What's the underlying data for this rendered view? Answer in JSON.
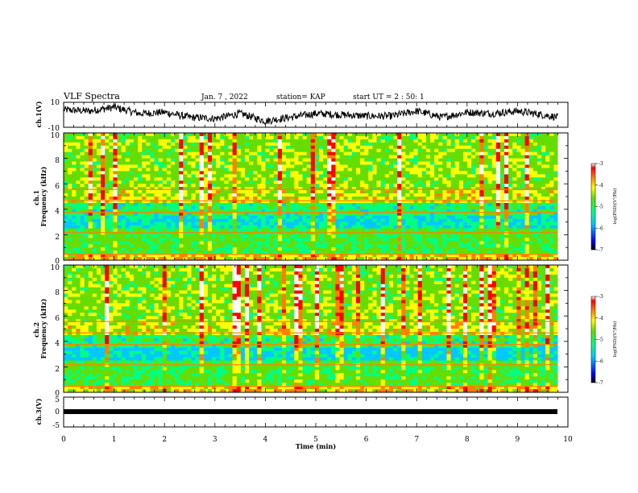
{
  "header": {
    "title": "VLF Spectra",
    "date": "Jan. 7 , 2022",
    "station": "station= KAP",
    "start": "start UT = 2 : 50: 1"
  },
  "colors": {
    "spectrum_scale": [
      "#000000",
      "#0000ff",
      "#00c8ff",
      "#00ff80",
      "#66dd00",
      "#ffff00",
      "#ff8000",
      "#ff0000",
      "#ffffff"
    ],
    "frame": "#000000"
  },
  "chart_data": [
    {
      "id": "ch1-waveform",
      "type": "line",
      "ylabel": "ch.1(V)",
      "ylim": [
        -10,
        10
      ],
      "yticks": [
        "10",
        "-10"
      ],
      "xlim": [
        0,
        10
      ],
      "x": [
        0,
        0.5,
        1,
        1.5,
        2,
        2.5,
        3,
        3.5,
        4,
        4.5,
        5,
        5.5,
        6,
        6.5,
        7,
        7.5,
        8,
        8.5,
        9,
        9.5,
        9.8
      ],
      "y": [
        4,
        3,
        6,
        1,
        2,
        -2,
        -3,
        1,
        -5,
        -2,
        1,
        0,
        -1,
        -1,
        3,
        -2,
        2,
        1,
        3,
        0,
        -2
      ]
    },
    {
      "id": "ch1-spectrogram",
      "type": "heatmap",
      "ylabel": "ch.1\nFrequency (kHz)",
      "ylim": [
        0,
        10
      ],
      "yticks": [
        "0",
        "2",
        "4",
        "6",
        "8",
        "10"
      ],
      "xlim": [
        0,
        10
      ],
      "data_xmax": 9.8,
      "colorbar": {
        "label": "log(PSD)(V²/Hz)",
        "range": [
          -7,
          -3
        ],
        "ticks": [
          "-3",
          "-4",
          "-5",
          "-6",
          "-7"
        ]
      }
    },
    {
      "id": "ch2-spectrogram",
      "type": "heatmap",
      "ylabel": "ch.2\nFrequency (kHz)",
      "ylim": [
        0,
        10
      ],
      "yticks": [
        "0",
        "2",
        "4",
        "6",
        "8",
        "10"
      ],
      "xlim": [
        0,
        10
      ],
      "data_xmax": 9.8,
      "colorbar": {
        "label": "log(PSD)(V²/Hz)",
        "range": [
          -7,
          -3
        ],
        "ticks": [
          "-3",
          "-4",
          "-5",
          "-6",
          "-7"
        ]
      }
    },
    {
      "id": "ch3-waveform",
      "type": "line",
      "ylabel": "ch.3(V)",
      "ylim": [
        -5,
        5
      ],
      "yticks": [
        "5",
        "0",
        "-5"
      ],
      "xlim": [
        0,
        10
      ],
      "xlabel": "Time (min)",
      "xticks": [
        "0",
        "1",
        "2",
        "3",
        "4",
        "5",
        "6",
        "7",
        "8",
        "9",
        "10"
      ],
      "x": [
        0,
        9.8
      ],
      "y": [
        0,
        0
      ]
    }
  ]
}
